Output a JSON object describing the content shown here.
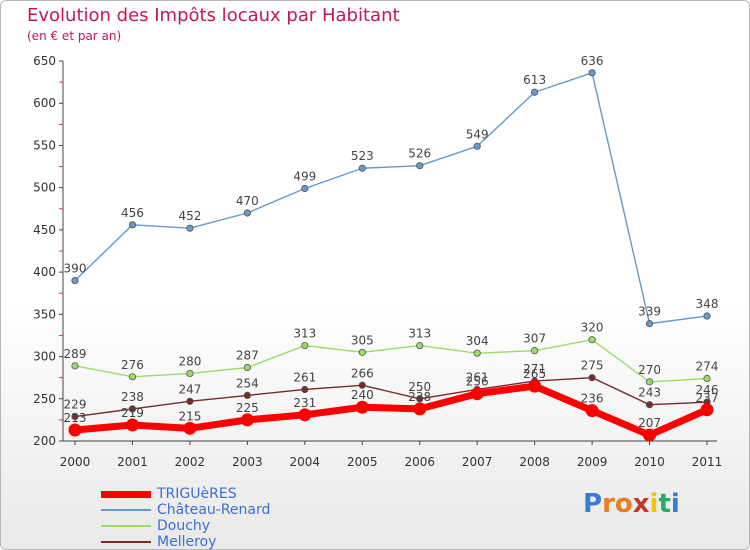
{
  "title": "Evolution des Impôts locaux par Habitant",
  "subtitle": "(en € et par an)",
  "logo_text": "Proxiti",
  "chart_data": {
    "type": "line",
    "x": [
      "2000",
      "2001",
      "2002",
      "2003",
      "2004",
      "2005",
      "2006",
      "2007",
      "2008",
      "2009",
      "2010",
      "2011"
    ],
    "ylim": [
      200,
      650
    ],
    "yticks": [
      200,
      250,
      300,
      350,
      400,
      450,
      500,
      550,
      600,
      650
    ],
    "grid": false,
    "legend_position": "bottom-left",
    "series": [
      {
        "name": "TRIGUèRES",
        "color": "#ff0000",
        "values": [
          213,
          219,
          215,
          225,
          231,
          240,
          238,
          256,
          265,
          236,
          207,
          237
        ]
      },
      {
        "name": "Château-Renard",
        "color": "#6699cc",
        "values": [
          390,
          456,
          452,
          470,
          499,
          523,
          526,
          549,
          613,
          636,
          339,
          348
        ]
      },
      {
        "name": "Douchy",
        "color": "#99dd66",
        "values": [
          289,
          276,
          280,
          287,
          313,
          305,
          313,
          304,
          307,
          320,
          270,
          274
        ]
      },
      {
        "name": "Melleroy",
        "color": "#7a2a2a",
        "values": [
          229,
          238,
          247,
          254,
          261,
          266,
          250,
          261,
          271,
          275,
          243,
          246
        ]
      }
    ]
  }
}
